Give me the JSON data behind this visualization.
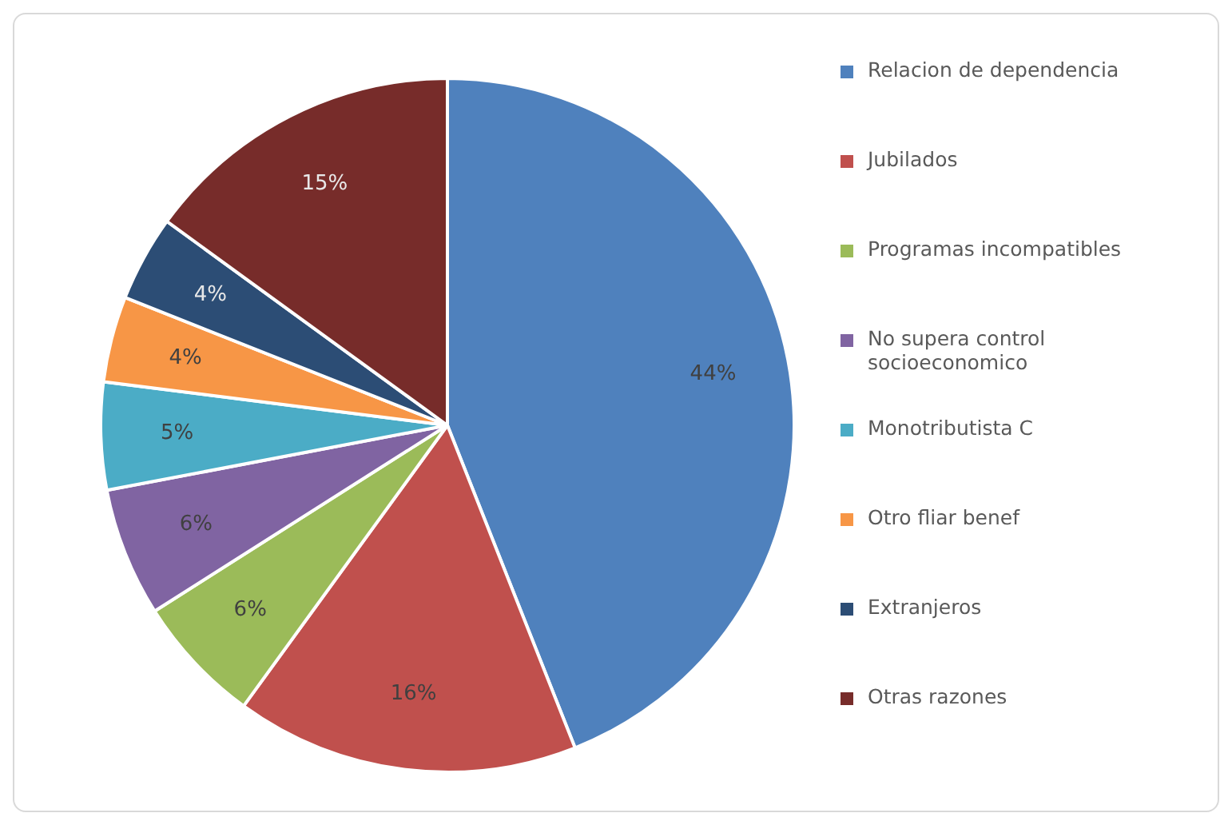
{
  "chart_data": {
    "type": "pie",
    "categories": [
      "Relacion de dependencia",
      "Jubilados",
      "Programas incompatibles",
      "No supera control socioeconomico",
      "Monotributista C",
      "Otro fliar benef",
      "Extranjeros",
      "Otras razones"
    ],
    "values": [
      44,
      16,
      6,
      6,
      5,
      4,
      4,
      15
    ],
    "colors": [
      "#4f81bd",
      "#c0504d",
      "#9bbb59",
      "#8064a2",
      "#4bacc6",
      "#f79646",
      "#2c4d75",
      "#772c2a"
    ],
    "value_labels": [
      "44%",
      "16%",
      "6%",
      "6%",
      "5%",
      "4%",
      "4%",
      "15%"
    ],
    "legend": "right"
  }
}
